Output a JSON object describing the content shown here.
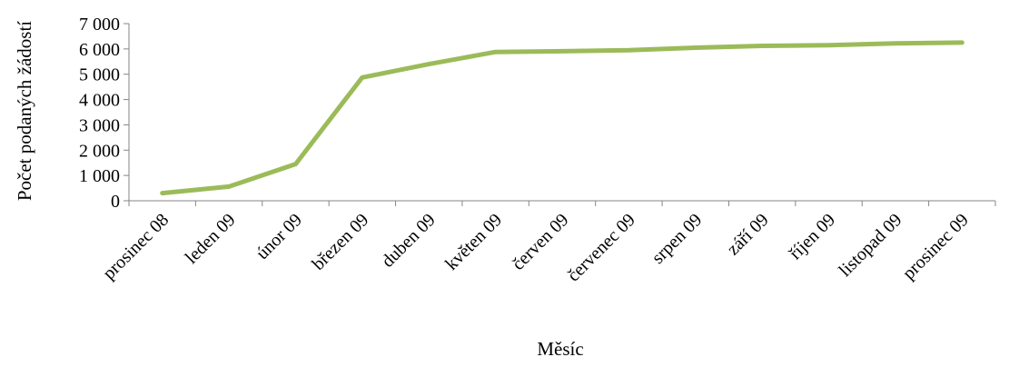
{
  "chart_data": {
    "type": "line",
    "title": "",
    "xlabel": "Měsíc",
    "ylabel": "Počet podaných žádostí",
    "categories": [
      "prosinec 08",
      "leden 09",
      "únor 09",
      "březen 09",
      "duben 09",
      "květen 09",
      "červen 09",
      "červenec 09",
      "srpen 09",
      "září 09",
      "říjen 09",
      "listopad 09",
      "prosinec 09"
    ],
    "series": [
      {
        "values": [
          300,
          560,
          1450,
          4870,
          5400,
          5880,
          5910,
          5950,
          6050,
          6120,
          6150,
          6220,
          6250
        ]
      }
    ],
    "ylim": [
      0,
      7000
    ],
    "yticks": [
      0,
      1000,
      2000,
      3000,
      4000,
      5000,
      6000,
      7000
    ],
    "ytick_labels": [
      "0",
      "1 000",
      "2 000",
      "3 000",
      "4 000",
      "5 000",
      "6 000",
      "7 000"
    ],
    "grid": false,
    "legend": "none",
    "line_color": "#9BBB59",
    "axis_color": "#868686"
  }
}
